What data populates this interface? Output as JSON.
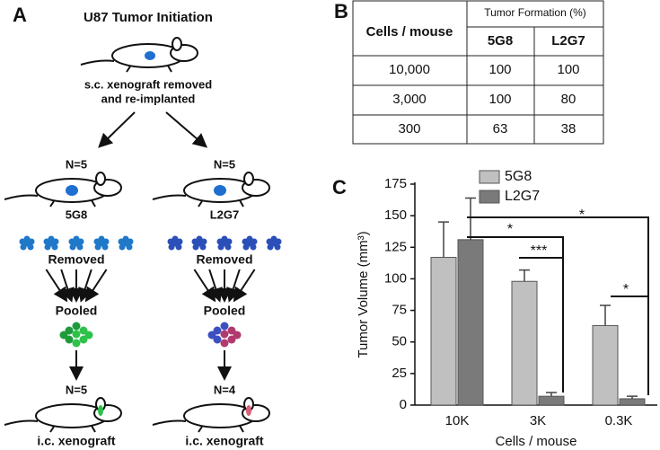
{
  "panel_a": {
    "label": "A",
    "title": "U87 Tumor Initiation",
    "source_lines": [
      "s.c. xenograft removed",
      "and re-implanted"
    ],
    "groups": [
      {
        "n_initial": "N=5",
        "name": "5G8",
        "removed": "Removed",
        "pooled": "Pooled",
        "n_final": "N=5",
        "result": "i.c. xenograft"
      },
      {
        "n_initial": "N=5",
        "name": "L2G7",
        "removed": "Removed",
        "pooled": "Pooled",
        "n_final": "N=4",
        "result": "i.c. xenograft"
      }
    ]
  },
  "table": {
    "label": "B",
    "row_header": "Cells / mouse",
    "group_header": "Tumor Formation (%)",
    "columns": [
      "5G8",
      "L2G7"
    ],
    "rows": [
      [
        "10,000",
        "100",
        "100"
      ],
      [
        "3,000",
        "100",
        "80"
      ],
      [
        "300",
        "63",
        "38"
      ]
    ]
  },
  "chart_data": {
    "type": "bar",
    "panel_label": "C",
    "x_label": "Cells / mouse",
    "y_label": "Tumor Volume (mm³)",
    "categories": [
      "10K",
      "3K",
      "0.3K"
    ],
    "series": [
      {
        "name": "5G8",
        "color": "#c0c0c0",
        "values": [
          117,
          98,
          63
        ],
        "errors": [
          28,
          9,
          16
        ]
      },
      {
        "name": "L2G7",
        "color": "#7a7a7a",
        "values": [
          131,
          7,
          5
        ],
        "errors": [
          33,
          3,
          2
        ]
      }
    ],
    "ylim": [
      0,
      175
    ],
    "yticks": [
      0,
      25,
      50,
      75,
      100,
      125,
      150,
      175
    ],
    "annotations": [
      "*",
      "*",
      "***",
      "*"
    ]
  }
}
